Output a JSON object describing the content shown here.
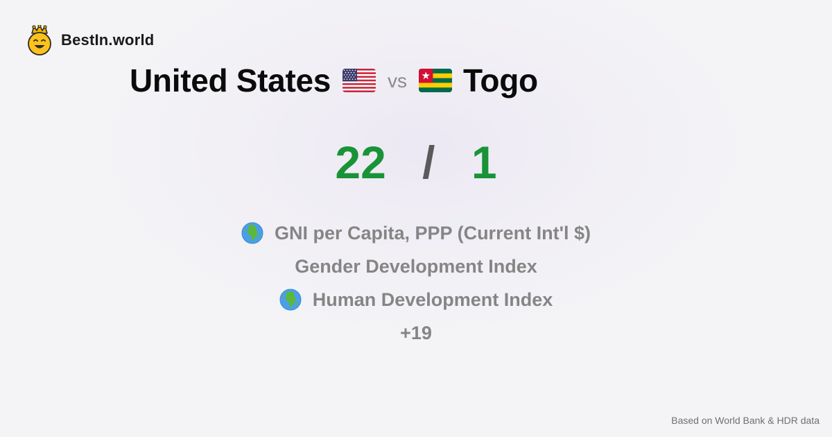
{
  "brand": {
    "name": "BestIn.world",
    "logo_icon": "crowned-smiley-icon"
  },
  "comparison": {
    "country_a": {
      "name": "United States",
      "flag_icon": "us-flag-icon"
    },
    "vs_label": "vs",
    "country_b": {
      "name": "Togo",
      "flag_icon": "togo-flag-icon"
    }
  },
  "score": {
    "a": "22",
    "separator": "/",
    "b": "1",
    "color": "#199337"
  },
  "metrics": [
    {
      "icon": "globe-africa-icon",
      "label": "GNI per Capita, PPP (Current Int'l $)"
    },
    {
      "icon": "",
      "label": "Gender Development Index"
    },
    {
      "icon": "globe-africa-icon",
      "label": "Human Development Index"
    }
  ],
  "more_label": "+19",
  "footer": {
    "source": "Based on World Bank & HDR data"
  }
}
